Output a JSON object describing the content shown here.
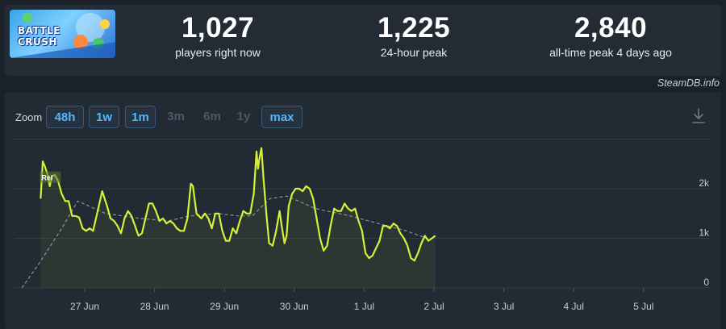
{
  "game": {
    "logo_line1": "BATTLE",
    "logo_line2": "CRUSH"
  },
  "stats": [
    {
      "value": "1,027",
      "label": "players right now"
    },
    {
      "value": "1,225",
      "label": "24-hour peak"
    },
    {
      "value": "2,840",
      "label": "all-time peak 4 days ago"
    }
  ],
  "source": "SteamDB.info",
  "zoom": {
    "label": "Zoom",
    "buttons": [
      {
        "label": "48h",
        "enabled": true
      },
      {
        "label": "1w",
        "enabled": true
      },
      {
        "label": "1m",
        "enabled": true
      },
      {
        "label": "3m",
        "enabled": false
      },
      {
        "label": "6m",
        "enabled": false
      },
      {
        "label": "1y",
        "enabled": false
      },
      {
        "label": "max",
        "enabled": true
      }
    ]
  },
  "icons": {
    "download": "download-icon"
  },
  "chart_data": {
    "type": "line",
    "x_ticks": [
      "27 Jun",
      "28 Jun",
      "29 Jun",
      "30 Jun",
      "1 Jul",
      "2 Jul",
      "3 Jul",
      "4 Jul",
      "5 Jul"
    ],
    "y_ticks": [
      "0",
      "1k",
      "2k"
    ],
    "ylim": [
      0,
      3000
    ],
    "grid": true,
    "annotation": "Rel",
    "colors": {
      "players": "#d6f03a",
      "average": "#8a949e",
      "grid": "#323c47"
    },
    "series": [
      {
        "style": "solid",
        "points": [
          [
            26.37,
            1800
          ],
          [
            26.4,
            2550
          ],
          [
            26.43,
            2450
          ],
          [
            26.47,
            2280
          ],
          [
            26.5,
            2050
          ],
          [
            26.53,
            2250
          ],
          [
            26.57,
            2280
          ],
          [
            26.62,
            2150
          ],
          [
            26.67,
            1900
          ],
          [
            26.72,
            1750
          ],
          [
            26.77,
            1750
          ],
          [
            26.82,
            1450
          ],
          [
            26.87,
            1450
          ],
          [
            26.92,
            1420
          ],
          [
            26.97,
            1200
          ],
          [
            27.02,
            1150
          ],
          [
            27.07,
            1200
          ],
          [
            27.12,
            1150
          ],
          [
            27.17,
            1450
          ],
          [
            27.25,
            1950
          ],
          [
            27.32,
            1650
          ],
          [
            27.37,
            1400
          ],
          [
            27.42,
            1350
          ],
          [
            27.47,
            1250
          ],
          [
            27.52,
            1100
          ],
          [
            27.57,
            1400
          ],
          [
            27.62,
            1550
          ],
          [
            27.67,
            1450
          ],
          [
            27.72,
            1250
          ],
          [
            27.77,
            1050
          ],
          [
            27.82,
            1100
          ],
          [
            27.87,
            1400
          ],
          [
            27.92,
            1700
          ],
          [
            27.97,
            1700
          ],
          [
            28.02,
            1550
          ],
          [
            28.07,
            1350
          ],
          [
            28.12,
            1400
          ],
          [
            28.17,
            1300
          ],
          [
            28.22,
            1350
          ],
          [
            28.27,
            1300
          ],
          [
            28.32,
            1200
          ],
          [
            28.37,
            1150
          ],
          [
            28.42,
            1150
          ],
          [
            28.47,
            1400
          ],
          [
            28.52,
            2100
          ],
          [
            28.55,
            2050
          ],
          [
            28.6,
            1500
          ],
          [
            28.67,
            1400
          ],
          [
            28.72,
            1500
          ],
          [
            28.77,
            1400
          ],
          [
            28.82,
            1200
          ],
          [
            28.87,
            1500
          ],
          [
            28.92,
            1500
          ],
          [
            28.97,
            1150
          ],
          [
            29.02,
            950
          ],
          [
            29.07,
            950
          ],
          [
            29.12,
            1200
          ],
          [
            29.17,
            1100
          ],
          [
            29.22,
            1350
          ],
          [
            29.27,
            1550
          ],
          [
            29.32,
            1500
          ],
          [
            29.37,
            1500
          ],
          [
            29.42,
            1900
          ],
          [
            29.46,
            2750
          ],
          [
            29.48,
            2400
          ],
          [
            29.5,
            2600
          ],
          [
            29.53,
            2820
          ],
          [
            29.56,
            2200
          ],
          [
            29.6,
            1500
          ],
          [
            29.64,
            900
          ],
          [
            29.69,
            850
          ],
          [
            29.74,
            1150
          ],
          [
            29.79,
            1550
          ],
          [
            29.82,
            1250
          ],
          [
            29.86,
            900
          ],
          [
            29.89,
            1050
          ],
          [
            29.92,
            1650
          ],
          [
            29.97,
            1900
          ],
          [
            30.02,
            2000
          ],
          [
            30.07,
            2000
          ],
          [
            30.12,
            1950
          ],
          [
            30.17,
            2050
          ],
          [
            30.22,
            2000
          ],
          [
            30.27,
            1800
          ],
          [
            30.32,
            1400
          ],
          [
            30.37,
            1000
          ],
          [
            30.42,
            750
          ],
          [
            30.47,
            850
          ],
          [
            30.52,
            1250
          ],
          [
            30.57,
            1600
          ],
          [
            30.62,
            1550
          ],
          [
            30.67,
            1550
          ],
          [
            30.72,
            1700
          ],
          [
            30.77,
            1600
          ],
          [
            30.82,
            1550
          ],
          [
            30.87,
            1600
          ],
          [
            30.92,
            1350
          ],
          [
            30.97,
            1150
          ],
          [
            31.02,
            700
          ],
          [
            31.07,
            600
          ],
          [
            31.12,
            650
          ],
          [
            31.17,
            800
          ],
          [
            31.22,
            950
          ],
          [
            31.27,
            1250
          ],
          [
            31.32,
            1250
          ],
          [
            31.37,
            1200
          ],
          [
            31.42,
            1300
          ],
          [
            31.47,
            1250
          ],
          [
            31.52,
            1100
          ],
          [
            31.57,
            1000
          ],
          [
            31.62,
            850
          ],
          [
            31.67,
            600
          ],
          [
            31.72,
            550
          ],
          [
            31.77,
            700
          ],
          [
            31.82,
            900
          ],
          [
            31.87,
            1050
          ],
          [
            31.92,
            950
          ],
          [
            31.97,
            1000
          ],
          [
            32.02,
            1050
          ]
        ]
      },
      {
        "style": "dashed",
        "points": [
          [
            26.1,
            0
          ],
          [
            26.35,
            500
          ],
          [
            26.65,
            1150
          ],
          [
            26.9,
            1750
          ],
          [
            27.3,
            1500
          ],
          [
            27.8,
            1400
          ],
          [
            28.2,
            1350
          ],
          [
            28.5,
            1450
          ],
          [
            28.9,
            1500
          ],
          [
            29.2,
            1450
          ],
          [
            29.4,
            1450
          ],
          [
            29.65,
            1800
          ],
          [
            29.9,
            1850
          ],
          [
            30.3,
            1600
          ],
          [
            30.8,
            1450
          ],
          [
            31.2,
            1300
          ],
          [
            31.6,
            1150
          ],
          [
            31.9,
            1000
          ]
        ]
      }
    ]
  }
}
